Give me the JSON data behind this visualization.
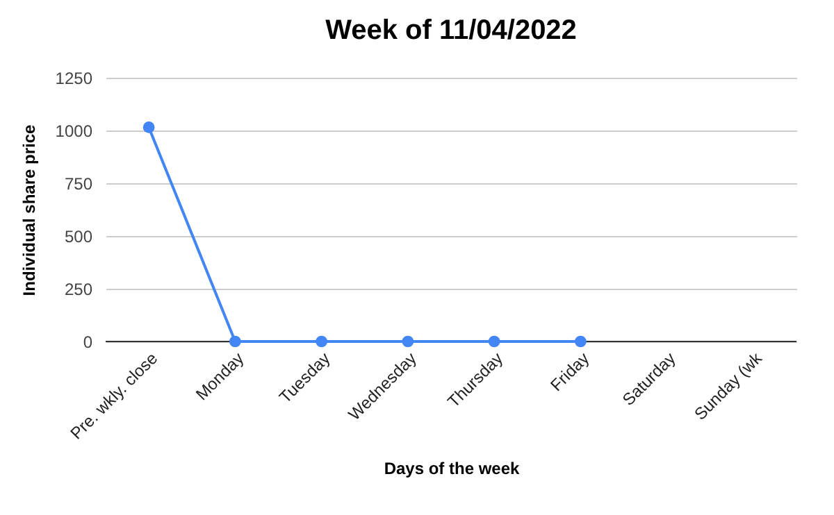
{
  "chart_data": {
    "type": "line",
    "title": "Week of 11/04/2022",
    "xlabel": "Days of the week",
    "ylabel": "Individual share price",
    "categories": [
      "Pre. wkly. close",
      "Monday",
      "Tuesday",
      "Wednesday",
      "Thursday",
      "Friday",
      "Saturday",
      "Sunday (wk"
    ],
    "series": [
      {
        "color": "#4285f4",
        "values": [
          1015,
          0,
          0,
          0,
          0,
          0,
          null,
          null
        ]
      }
    ],
    "ylim": [
      0,
      1250
    ],
    "yticks": [
      0,
      250,
      500,
      750,
      1000,
      1250
    ],
    "grid": "y",
    "marker": "circle",
    "legend": false
  }
}
